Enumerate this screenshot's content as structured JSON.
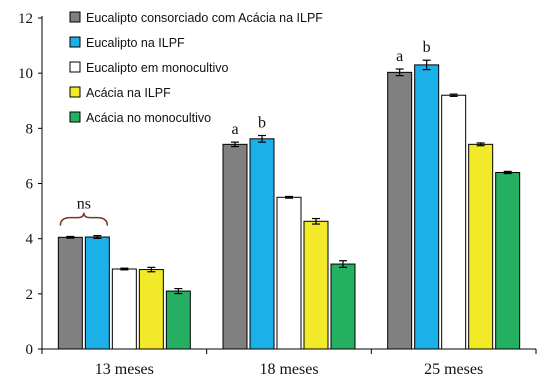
{
  "chart_data": {
    "type": "bar",
    "categories": [
      "13 meses",
      "18 meses",
      "25 meses"
    ],
    "series": [
      {
        "name": "Eucalipto consorciado com Acácia na ILPF",
        "color": "#808080",
        "values": [
          4.05,
          7.42,
          10.03
        ],
        "errors": [
          0.03,
          0.08,
          0.12
        ]
      },
      {
        "name": "Eucalipto na ILPF",
        "color": "#1cb0e8",
        "values": [
          4.06,
          7.62,
          10.3
        ],
        "errors": [
          0.05,
          0.12,
          0.17
        ]
      },
      {
        "name": "Eucalipto em monocultivo",
        "color": "#ffffff",
        "values": [
          2.9,
          5.5,
          9.2
        ],
        "errors": [
          0.03,
          0.03,
          0.04
        ]
      },
      {
        "name": "Acácia na ILPF",
        "color": "#f2ea28",
        "values": [
          2.88,
          4.63,
          7.42
        ],
        "errors": [
          0.08,
          0.1,
          0.05
        ]
      },
      {
        "name": "Acácia no monocultivo",
        "color": "#25b061",
        "values": [
          2.1,
          3.08,
          6.4
        ],
        "errors": [
          0.09,
          0.12,
          0.04
        ]
      }
    ],
    "ylim": [
      0,
      12
    ],
    "yticks": [
      "0",
      "2",
      "4",
      "6",
      "8",
      "10",
      "12"
    ],
    "legend_position": "top-left",
    "grid": false,
    "annotations": [
      {
        "text": "ns",
        "category": 0,
        "spans_series": [
          0,
          1
        ],
        "bracket": true
      },
      {
        "text": "a",
        "category": 1,
        "series": 0
      },
      {
        "text": "b",
        "category": 1,
        "series": 1
      },
      {
        "text": "a",
        "category": 2,
        "series": 0
      },
      {
        "text": "b",
        "category": 2,
        "series": 1
      }
    ]
  }
}
